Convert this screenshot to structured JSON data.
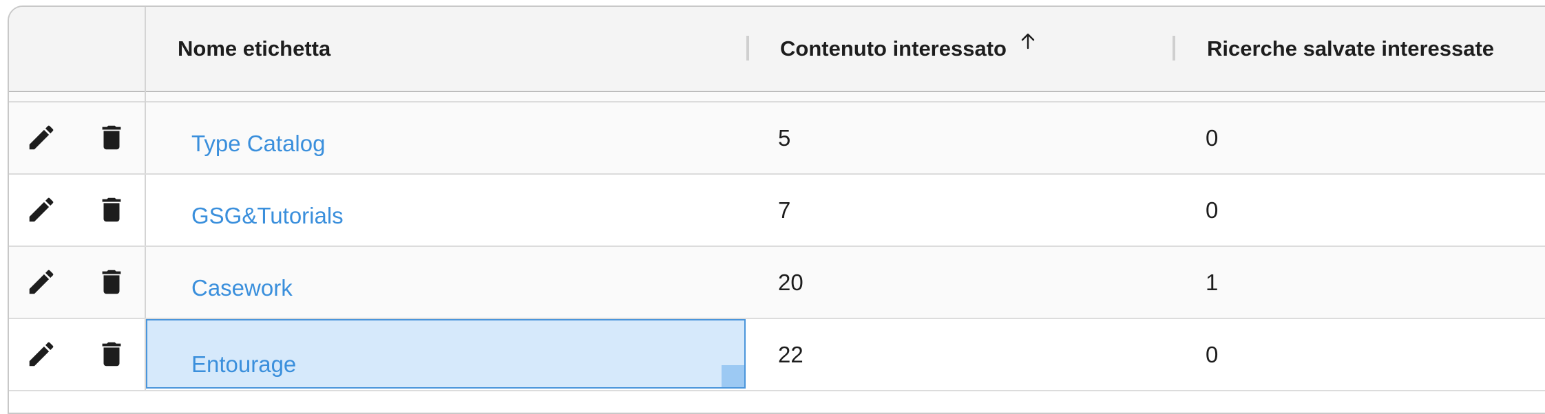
{
  "table": {
    "columns": {
      "name": "Nome etichetta",
      "content": "Contenuto interessato",
      "searches": "Ricerche salvate interessate"
    },
    "sort": {
      "column": "content",
      "direction": "ascending",
      "icon": "arrow-up-icon"
    },
    "row_icons": {
      "edit": "pencil-icon",
      "delete": "trash-icon"
    },
    "rows": [
      {
        "name": "Type Catalog",
        "content": "5",
        "searches": "0"
      },
      {
        "name": "GSG&Tutorials",
        "content": "7",
        "searches": "0"
      },
      {
        "name": "Casework",
        "content": "20",
        "searches": "1"
      },
      {
        "name": "Entourage",
        "content": "22",
        "searches": "0",
        "selected": true
      }
    ]
  },
  "colors": {
    "link": "#3a8fdc",
    "selection_fill": "#d6e9fb",
    "selection_border": "#4a95db",
    "header_bg": "#f4f4f4",
    "text": "#1d1d1d"
  }
}
